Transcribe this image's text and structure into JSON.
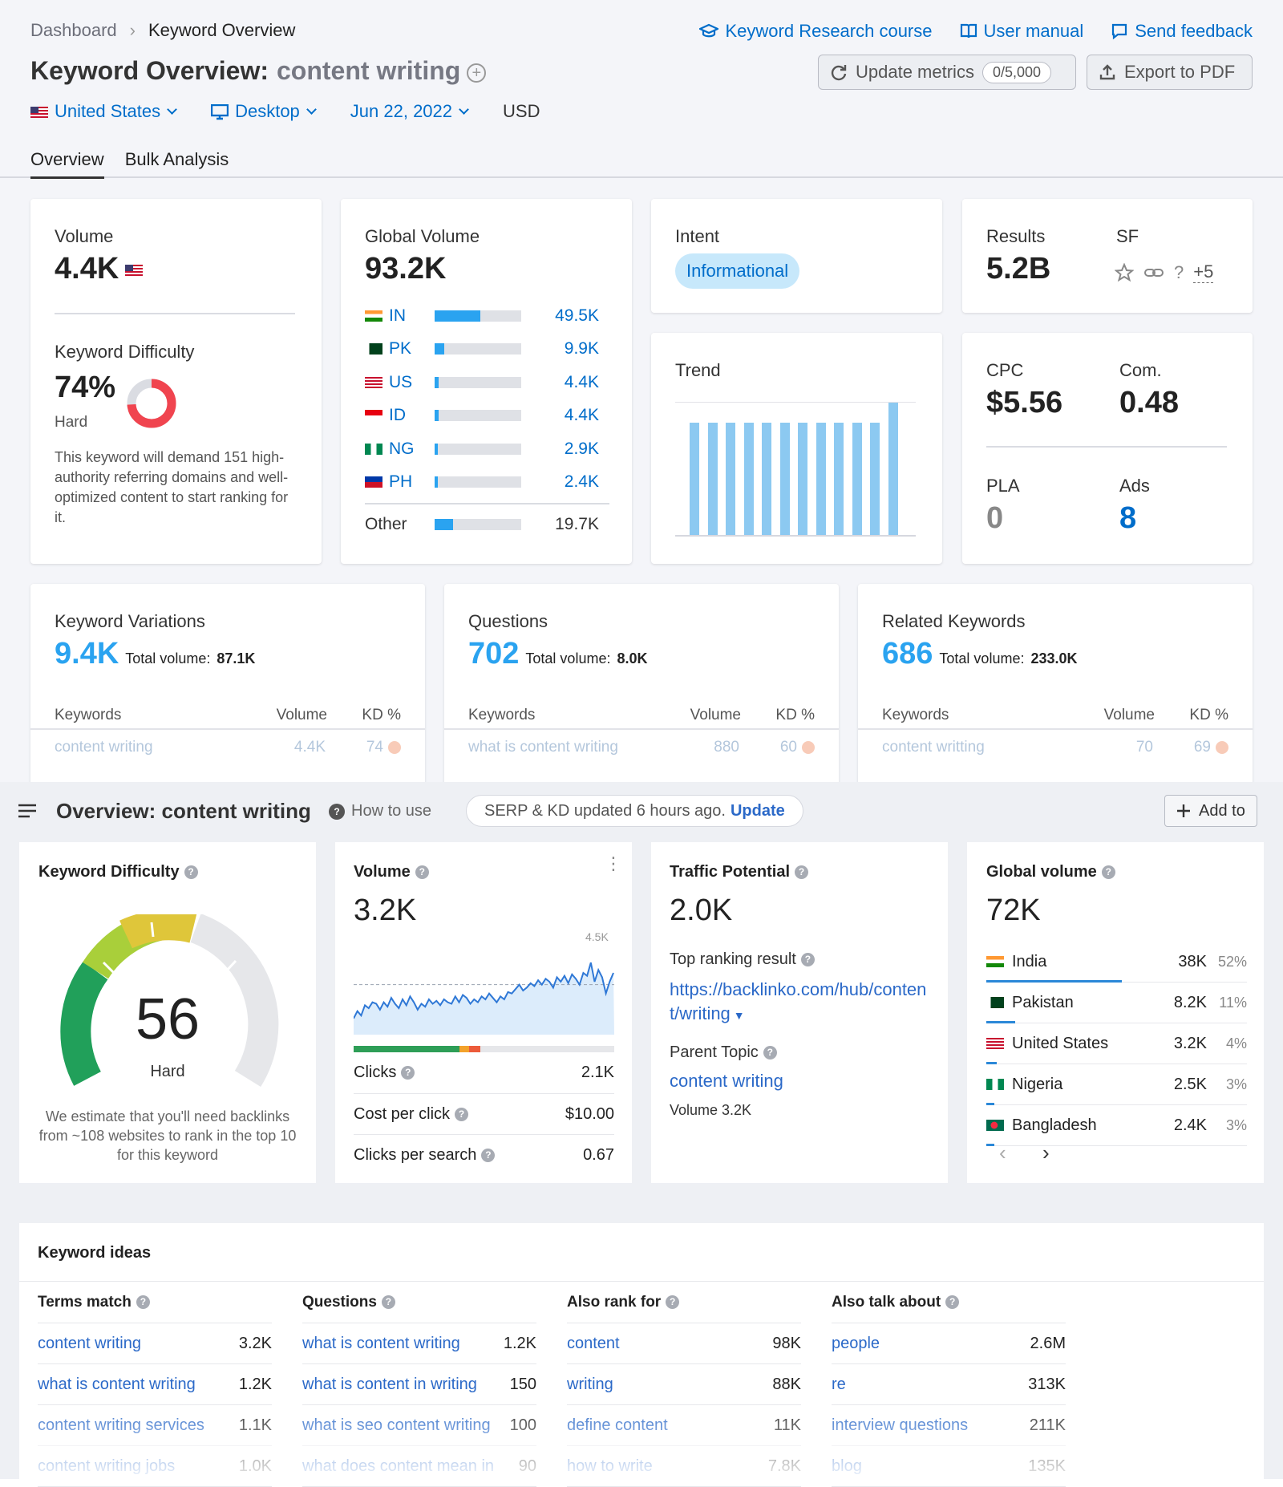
{
  "top": {
    "breadcrumb": {
      "root": "Dashboard",
      "current": "Keyword Overview"
    },
    "links": [
      "Keyword Research course",
      "User manual",
      "Send feedback"
    ],
    "title": {
      "prefix": "Keyword Overview:",
      "keyword": "content writing"
    },
    "buttons": {
      "update": "Update metrics",
      "quota": "0/5,000",
      "export": "Export to PDF"
    },
    "filters": {
      "country": "United States",
      "device": "Desktop",
      "date": "Jun 22, 2022",
      "currency": "USD"
    },
    "tabs": [
      "Overview",
      "Bulk Analysis"
    ],
    "volume": {
      "label": "Volume",
      "value": "4.4K"
    },
    "kd": {
      "label": "Keyword Difficulty",
      "value": "74%",
      "level": "Hard",
      "percent": 74,
      "desc": "This keyword will demand 151 high-authority referring domains and well-optimized content to start ranking for it."
    },
    "global": {
      "label": "Global Volume",
      "value": "93.2K",
      "rows": [
        {
          "cc": "IN",
          "val": "49.5K",
          "share": 0.53
        },
        {
          "cc": "PK",
          "val": "9.9K",
          "share": 0.11
        },
        {
          "cc": "US",
          "val": "4.4K",
          "share": 0.05
        },
        {
          "cc": "ID",
          "val": "4.4K",
          "share": 0.05
        },
        {
          "cc": "NG",
          "val": "2.9K",
          "share": 0.03
        },
        {
          "cc": "PH",
          "val": "2.4K",
          "share": 0.03
        }
      ],
      "other": {
        "cc": "Other",
        "val": "19.7K",
        "share": 0.21
      }
    },
    "intent": {
      "label": "Intent",
      "value": "Informational"
    },
    "results": {
      "label": "Results",
      "value": "5.2B",
      "sf_label": "SF",
      "sf_more": "+5"
    },
    "trend": {
      "label": "Trend",
      "values": [
        0.85,
        0.85,
        0.85,
        0.85,
        0.85,
        0.85,
        0.85,
        0.85,
        0.85,
        0.85,
        0.85,
        1.0
      ]
    },
    "cpc": {
      "label": "CPC",
      "value": "$5.56",
      "com_label": "Com.",
      "com_value": "0.48",
      "pla_label": "PLA",
      "pla_value": "0",
      "ads_label": "Ads",
      "ads_value": "8"
    },
    "panels": [
      {
        "title": "Keyword Variations",
        "count": "9.4K",
        "tv_label": "Total volume:",
        "tv": "87.1K",
        "row": {
          "kw": "content writing",
          "vol": "4.4K",
          "kd": "74"
        }
      },
      {
        "title": "Questions",
        "count": "702",
        "tv_label": "Total volume:",
        "tv": "8.0K",
        "row": {
          "kw": "what is content writing",
          "vol": "880",
          "kd": "60"
        }
      },
      {
        "title": "Related Keywords",
        "count": "686",
        "tv_label": "Total volume:",
        "tv": "233.0K",
        "row": {
          "kw": "content writting",
          "vol": "70",
          "kd": "69"
        }
      }
    ],
    "table_headers": {
      "kw": "Keywords",
      "vol": "Volume",
      "kd": "KD %"
    }
  },
  "bottom": {
    "title": "Overview: content writing",
    "how": "How to use",
    "serp_text": "SERP & KD updated 6 hours ago.",
    "serp_link": "Update",
    "add": "Add to",
    "kd": {
      "label": "Keyword Difficulty",
      "value": "56",
      "level": "Hard",
      "desc": "We estimate that you'll need backlinks from ~108 websites to rank in the top 10 for this keyword"
    },
    "volume": {
      "label": "Volume",
      "value": "3.2K",
      "axis_max": "4.5K",
      "series": [
        2.05,
        2.3,
        2.15,
        2.5,
        2.4,
        2.6,
        2.55,
        2.35,
        2.6,
        2.45,
        2.75,
        2.55,
        2.4,
        2.7,
        2.5,
        2.8,
        2.6,
        2.35,
        2.55,
        2.45,
        2.7,
        2.55,
        2.65,
        2.5,
        2.7,
        2.6,
        2.55,
        2.8,
        2.6,
        2.85,
        2.75,
        2.55,
        2.7,
        2.6,
        2.8,
        2.7,
        2.9,
        2.75,
        2.6,
        2.8,
        2.7,
        2.95,
        2.9,
        3.05,
        3.2,
        3.0,
        3.1,
        3.25,
        3.15,
        3.35,
        3.2,
        3.4,
        3.3,
        3.1,
        3.45,
        3.3,
        3.5,
        3.25,
        3.55,
        3.4,
        3.2,
        3.6,
        3.5,
        3.95,
        3.3,
        3.7,
        3.45,
        2.9,
        3.3,
        3.6
      ],
      "metrics": [
        {
          "k": "Clicks",
          "v": "2.1K"
        },
        {
          "k": "Cost per click",
          "v": "$10.00"
        },
        {
          "k": "Clicks per search",
          "v": "0.67"
        }
      ]
    },
    "traffic": {
      "label": "Traffic Potential",
      "value": "2.0K",
      "top_label": "Top ranking result",
      "top_url": "https://backlinko.com/hub/content/writing",
      "parent_label": "Parent Topic",
      "parent": "content writing",
      "parent_vol": "Volume 3.2K"
    },
    "global": {
      "label": "Global volume",
      "value": "72K",
      "rows": [
        {
          "name": "India",
          "v": "38K",
          "p": "52%",
          "share": 0.52
        },
        {
          "name": "Pakistan",
          "v": "8.2K",
          "p": "11%",
          "share": 0.11
        },
        {
          "name": "United States",
          "v": "3.2K",
          "p": "4%",
          "share": 0.04
        },
        {
          "name": "Nigeria",
          "v": "2.5K",
          "p": "3%",
          "share": 0.03
        },
        {
          "name": "Bangladesh",
          "v": "2.4K",
          "p": "3%",
          "share": 0.03
        }
      ]
    },
    "ideas": {
      "title": "Keyword ideas",
      "cols": [
        {
          "h": "Terms match",
          "rows": [
            [
              "content writing",
              "3.2K"
            ],
            [
              "what is content writing",
              "1.2K"
            ],
            [
              "content writing services",
              "1.1K"
            ],
            [
              "content writing jobs",
              "1.0K"
            ]
          ]
        },
        {
          "h": "Questions",
          "rows": [
            [
              "what is content writing",
              "1.2K"
            ],
            [
              "what is content in writing",
              "150"
            ],
            [
              "what is seo content writing",
              "100"
            ],
            [
              "what does content mean in",
              "90"
            ]
          ]
        },
        {
          "h": "Also rank for",
          "rows": [
            [
              "content",
              "98K"
            ],
            [
              "writing",
              "88K"
            ],
            [
              "define content",
              "11K"
            ],
            [
              "how to write",
              "7.8K"
            ]
          ]
        },
        {
          "h": "Also talk about",
          "rows": [
            [
              "people",
              "2.6M"
            ],
            [
              "re",
              "313K"
            ],
            [
              "interview questions",
              "211K"
            ],
            [
              "blog",
              "135K"
            ]
          ]
        }
      ]
    }
  }
}
